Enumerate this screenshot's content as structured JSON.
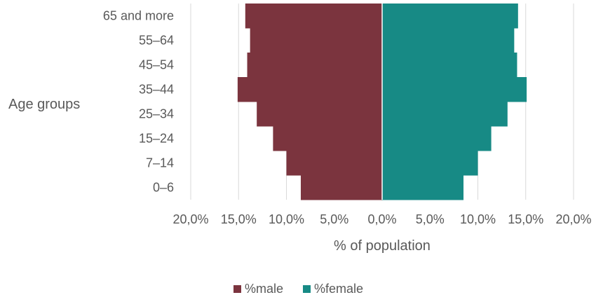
{
  "chart_data": {
    "type": "bar",
    "orientation": "horizontal",
    "subtype": "population-pyramid",
    "title": "",
    "xlabel": "% of population",
    "ylabel": "Age groups",
    "categories": [
      "0–6",
      "7–14",
      "15–24",
      "25–34",
      "35–44",
      "45–54",
      "55–64",
      "65 and more"
    ],
    "series": [
      {
        "name": "%male",
        "color": "#7B343E",
        "side": "left",
        "values": [
          8.5,
          10.0,
          11.4,
          13.1,
          15.1,
          14.1,
          13.8,
          14.3
        ]
      },
      {
        "name": "%female",
        "color": "#178A85",
        "side": "right",
        "values": [
          8.5,
          10.0,
          11.4,
          13.1,
          15.1,
          14.1,
          13.8,
          14.2
        ]
      }
    ],
    "xlim": [
      -20,
      20
    ],
    "xticks": [
      -20,
      -15,
      -10,
      -5,
      0,
      5,
      10,
      15,
      20
    ],
    "xtick_labels": [
      "20,0%",
      "15,0%",
      "10,0%",
      "5,0%",
      "0,0%",
      "5,0%",
      "10,0%",
      "15,0%",
      "20,0%"
    ],
    "grid": "vertical",
    "gridline_color": "#D9D9D9",
    "legend": {
      "position": "bottom"
    }
  }
}
